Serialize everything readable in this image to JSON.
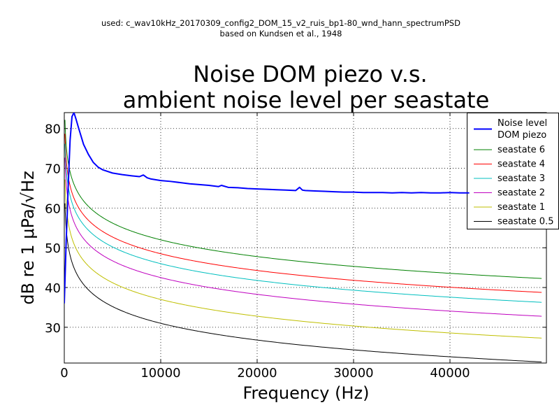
{
  "header": {
    "line1": "used: c_wav10kHz_20170309_config2_DOM_15_v2_ruis_bp1-80_wnd_hann_spectrumPSD",
    "line2": "based on Kundsen et al., 1948"
  },
  "chart_data": {
    "type": "line",
    "title_lines": [
      "Noise DOM piezo v.s.",
      "ambient noise level per seastate"
    ],
    "xlabel": "Frequency (Hz)",
    "ylabel": "dB re 1 μPa/√Hz",
    "xlim": [
      0,
      50000
    ],
    "ylim": [
      21,
      84
    ],
    "xticks": [
      0,
      10000,
      20000,
      30000,
      40000
    ],
    "yticks": [
      30,
      40,
      50,
      60,
      70,
      80
    ],
    "grid": true,
    "legend": "top-right",
    "series": [
      {
        "name": "Noise level DOM piezo",
        "legend_lines": [
          "Noise level",
          "DOM piezo"
        ],
        "color": "#0000ff",
        "width": 2,
        "x": [
          0,
          100,
          200,
          300,
          400,
          500,
          600,
          800,
          1000,
          1200,
          1500,
          2000,
          2500,
          3000,
          3500,
          4000,
          5000,
          6000,
          7000,
          7800,
          8200,
          8600,
          9000,
          10000,
          11000,
          12000,
          13000,
          14000,
          15000,
          16000,
          16300,
          17000,
          18000,
          19000,
          20000,
          21000,
          22000,
          23000,
          24000,
          24400,
          24700,
          25000,
          26000,
          27000,
          28000,
          29000,
          30000,
          31000,
          32000,
          33000,
          34000,
          35000,
          36000,
          37000,
          38000,
          39000,
          40000,
          41000,
          42000
        ],
        "y": [
          36,
          44,
          52,
          58,
          65,
          71,
          77,
          83,
          84,
          82.5,
          80,
          76,
          73.5,
          71.5,
          70.3,
          69.6,
          68.8,
          68.4,
          68.1,
          67.9,
          68.3,
          67.6,
          67.3,
          66.9,
          66.7,
          66.4,
          66.1,
          65.9,
          65.7,
          65.4,
          65.7,
          65.2,
          65.1,
          64.9,
          64.8,
          64.7,
          64.6,
          64.5,
          64.4,
          65.2,
          64.5,
          64.4,
          64.3,
          64.2,
          64.1,
          64.0,
          64.0,
          63.9,
          63.9,
          63.9,
          63.8,
          63.9,
          63.8,
          63.9,
          63.8,
          63.8,
          63.9,
          63.8,
          63.8
        ]
      },
      {
        "name": "seastate 6",
        "color": "#008000",
        "width": 1,
        "model": "log",
        "ref_freq": 1000,
        "ref_level": 66,
        "slope_db_per_decade": -14,
        "fmin": 70,
        "fmax": 49500
      },
      {
        "name": "seastate 4",
        "color": "#ff0000",
        "width": 1,
        "model": "log",
        "ref_freq": 1000,
        "ref_level": 62.5,
        "slope_db_per_decade": -14,
        "fmin": 70,
        "fmax": 49500
      },
      {
        "name": "seastate 3",
        "color": "#00bfbf",
        "width": 1,
        "model": "log",
        "ref_freq": 1000,
        "ref_level": 60,
        "slope_db_per_decade": -14,
        "fmin": 70,
        "fmax": 49500
      },
      {
        "name": "seastate 2",
        "color": "#bf00bf",
        "width": 1,
        "model": "log",
        "ref_freq": 1000,
        "ref_level": 56.5,
        "slope_db_per_decade": -14,
        "fmin": 70,
        "fmax": 49500
      },
      {
        "name": "seastate 1",
        "color": "#bfbf00",
        "width": 1,
        "model": "log",
        "ref_freq": 1000,
        "ref_level": 51,
        "slope_db_per_decade": -14,
        "fmin": 70,
        "fmax": 49500
      },
      {
        "name": "seastate 0.5",
        "color": "#000000",
        "width": 1,
        "model": "log",
        "ref_freq": 1000,
        "ref_level": 45,
        "slope_db_per_decade": -14,
        "fmin": 70,
        "fmax": 49500
      }
    ]
  }
}
